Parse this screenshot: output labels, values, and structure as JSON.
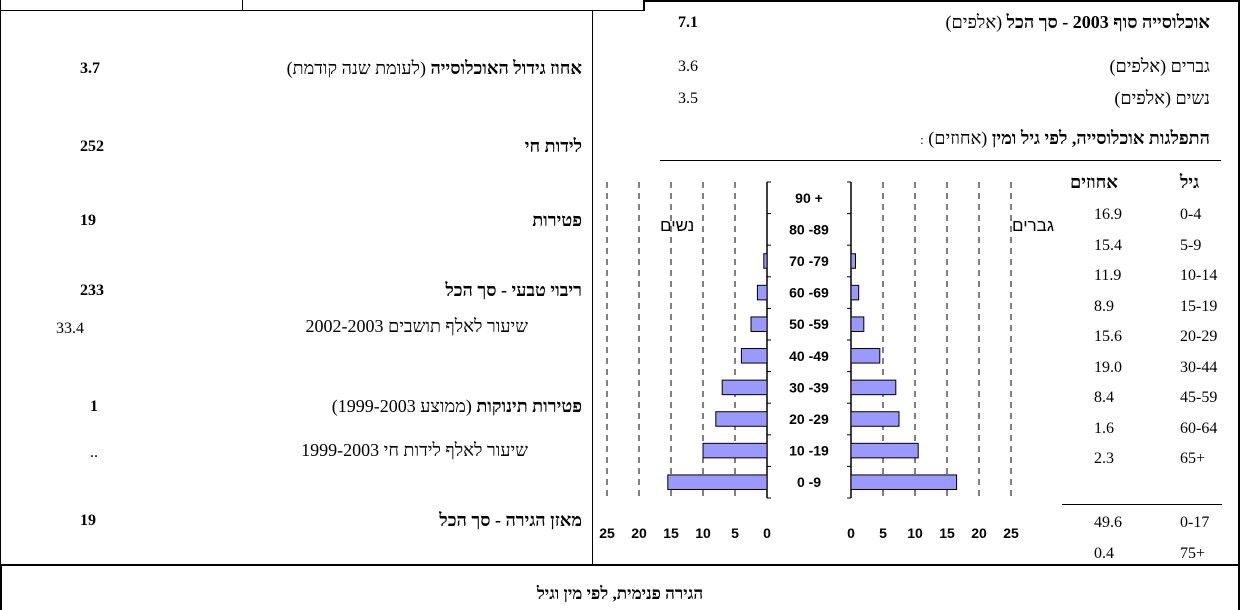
{
  "header": {
    "population_title": "אוכלוסייה סוף 2003 - סך הכל",
    "population_unit": "(אלפים)",
    "population_total": "7.1",
    "men_label": "גברים",
    "men_unit": "(אלפים)",
    "men_value": "3.6",
    "women_label": "נשים",
    "women_unit": "(אלפים)",
    "women_value": "3.5",
    "distribution_title": "התפלגות אוכלוסייה, לפי גיל ומין",
    "distribution_unit": "(אחוזים)",
    "distribution_colon": ":"
  },
  "age_table": {
    "age_header": "גיל",
    "pct_header": "אחוזים",
    "rows": [
      {
        "age": "0-4",
        "pct": "16.9"
      },
      {
        "age": "5-9",
        "pct": "15.4"
      },
      {
        "age": "10-14",
        "pct": "11.9"
      },
      {
        "age": "15-19",
        "pct": "8.9"
      },
      {
        "age": "20-29",
        "pct": "15.6"
      },
      {
        "age": "30-44",
        "pct": "19.0"
      },
      {
        "age": "45-59",
        "pct": "8.4"
      },
      {
        "age": "60-64",
        "pct": "1.6"
      },
      {
        "age": "65+",
        "pct": "2.3"
      }
    ],
    "extra_rows": [
      {
        "age": "0-17",
        "pct": "49.6"
      },
      {
        "age": "75+",
        "pct": "0.4"
      }
    ]
  },
  "stats": {
    "growth_label": "אחוז גידול האוכלוסייה",
    "growth_note": "(לעומת שנה קודמת)",
    "growth_value": "3.7",
    "births_label": "לידות חי",
    "births_value": "252",
    "deaths_label": "פטירות",
    "deaths_value": "19",
    "natural_label": "ריבוי טבעי - סך הכל",
    "natural_value": "233",
    "natural_rate_label": "שיעור לאלף תושבים 2002-2003",
    "natural_rate_value": "33.4",
    "infant_label": "פטירות תינוקות",
    "infant_note": "(ממוצע 1999-2003)",
    "infant_value": "1",
    "infant_rate_label": "שיעור לאלף לידות חי 1999-2003",
    "infant_rate_value": "..",
    "migration_label": "מאזן הגירה - סך הכל",
    "migration_value": "19"
  },
  "footer": {
    "internal_migration_title": "הגירה פנימית, לפי מין וגיל"
  },
  "chart_data": {
    "type": "bar",
    "title": "",
    "categories": [
      "0 -9",
      "10 -19",
      "20 -29",
      "30 -39",
      "40 -49",
      "50 -59",
      "60 -69",
      "70 -79",
      "80 -89",
      "90 +"
    ],
    "series": [
      {
        "name": "גברים",
        "values": [
          16.5,
          10.5,
          7.5,
          7.0,
          4.5,
          2.0,
          1.2,
          0.7,
          0,
          0
        ]
      },
      {
        "name": "נשים",
        "values": [
          15.5,
          10.0,
          8.0,
          7.0,
          4.0,
          2.5,
          1.5,
          0.5,
          0,
          0
        ]
      }
    ],
    "men_label": "גברים",
    "women_label": "נשים",
    "xlim": [
      0,
      25
    ],
    "xticks": [
      "0",
      "5",
      "10",
      "15",
      "20",
      "25"
    ],
    "women_xticks": [
      "25",
      "20",
      "15",
      "10",
      "5",
      "0"
    ],
    "bar_color": "#9999ff",
    "grid": "dashed vertical"
  }
}
